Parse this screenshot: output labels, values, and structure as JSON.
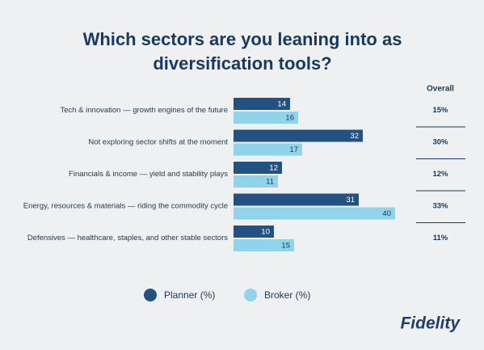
{
  "chart_data": {
    "type": "hbar",
    "title": "Which sectors are you leaning into as diversification tools?",
    "categories": [
      "Tech & innovation — growth engines of the future",
      "Not exploring sector shifts at the moment",
      "Financials & income — yield and stability plays",
      "Energy, resources & materials — riding the commodity cycle",
      "Defensives — healthcare, staples, and other stable sectors"
    ],
    "series": [
      {
        "name": "Planner (%)",
        "color": "#235282",
        "values": [
          14,
          32,
          12,
          31,
          10
        ]
      },
      {
        "name": "Broker (%)",
        "color": "#8fd4ea",
        "values": [
          16,
          17,
          11,
          40,
          15
        ]
      }
    ],
    "xlim": [
      0,
      40
    ],
    "overall": {
      "label": "Overall",
      "values": [
        15,
        30,
        12,
        33,
        11
      ],
      "value_labels": [
        "15%",
        "30%",
        "12%",
        "33%",
        "11%"
      ]
    },
    "brand": "Fidelity"
  }
}
